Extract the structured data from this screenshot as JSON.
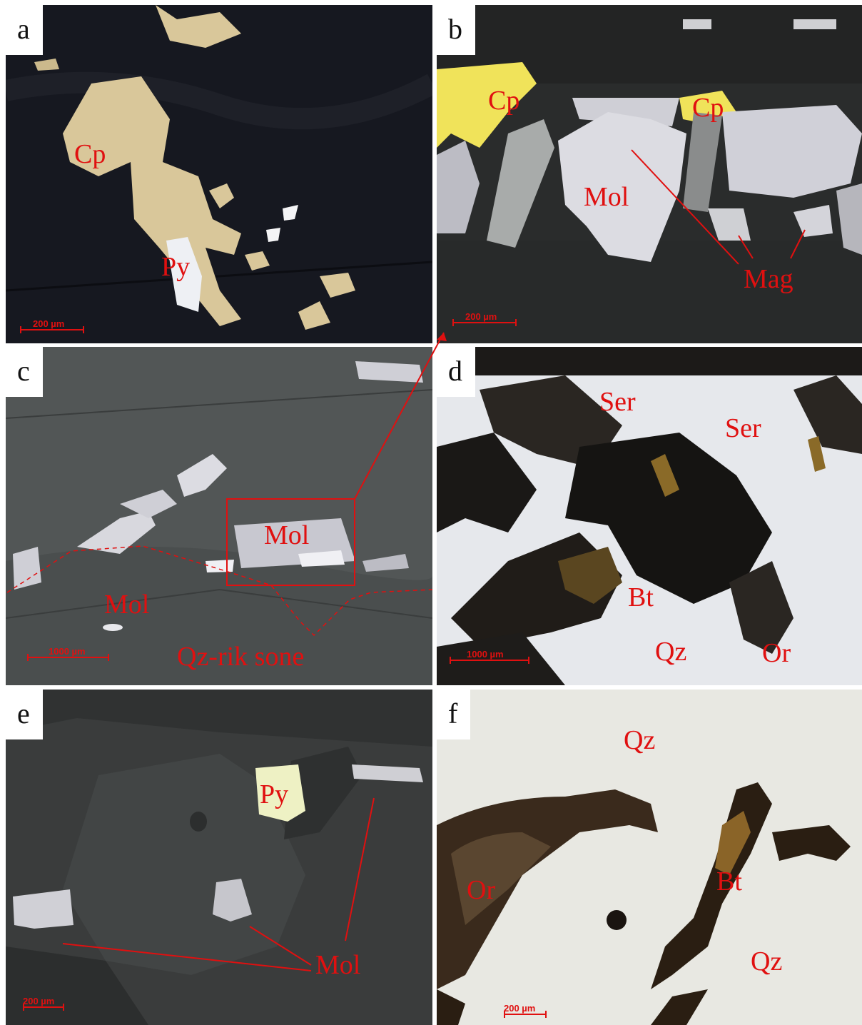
{
  "panels": [
    {
      "letter": "a",
      "labels": [
        "Cp",
        "Py"
      ],
      "scale": "200 µm"
    },
    {
      "letter": "b",
      "labels": [
        "Cp",
        "Cp",
        "Mol",
        "Mag"
      ],
      "scale": "200 µm"
    },
    {
      "letter": "c",
      "labels": [
        "Mol",
        "Mol",
        "Qz-rik sone"
      ],
      "scale": "1000 µm"
    },
    {
      "letter": "d",
      "labels": [
        "Ser",
        "Ser",
        "Bt",
        "Qz",
        "Or"
      ],
      "scale": "1000 µm"
    },
    {
      "letter": "e",
      "labels": [
        "Py",
        "Mol"
      ],
      "scale": "200 µm"
    },
    {
      "letter": "f",
      "labels": [
        "Qz",
        "Or",
        "Bt",
        "Qz"
      ],
      "scale": "200 µm"
    }
  ],
  "colors": {
    "label": "#e01010",
    "background_reflected": "#13151b",
    "chalcopyrite": "#d9c79a",
    "pyrite": "#f2f0c8"
  }
}
